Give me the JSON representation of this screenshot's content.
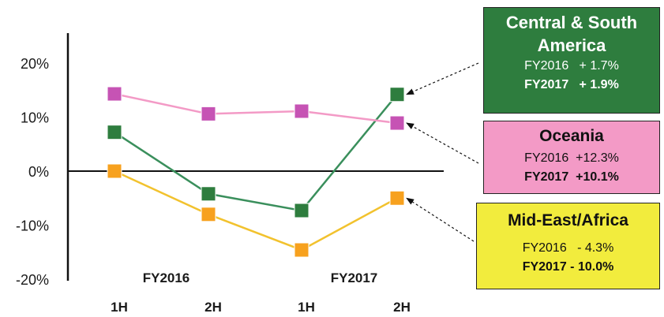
{
  "chart_data": {
    "type": "line",
    "title": "",
    "xlabel": "",
    "ylabel": "",
    "categories": [
      "1H",
      "2H",
      "1H",
      "2H"
    ],
    "groups": [
      {
        "label": "FY2016",
        "span": [
          0,
          1
        ]
      },
      {
        "label": "FY2017",
        "span": [
          2,
          3
        ]
      }
    ],
    "ylim": [
      -20,
      20
    ],
    "yticks": [
      {
        "value": 20,
        "label": "20%"
      },
      {
        "value": 10,
        "label": "10%"
      },
      {
        "value": 0,
        "label": "0%"
      },
      {
        "value": -10,
        "label": "-10%"
      },
      {
        "value": -20,
        "label": "-20%"
      }
    ],
    "grid": false,
    "legend": "callout boxes on the right",
    "series": [
      {
        "name": "Central & South America",
        "values": [
          7.2,
          -4.2,
          -7.3,
          14.2
        ],
        "line_color": "#3a8f5c",
        "marker_color": "#2e7d3e"
      },
      {
        "name": "Oceania",
        "values": [
          14.3,
          10.6,
          11.1,
          8.9
        ],
        "line_color": "#f39ac6",
        "marker_color": "#c653b4"
      },
      {
        "name": "Mid-East/Africa",
        "values": [
          0.0,
          -8.0,
          -14.6,
          -5.0
        ],
        "line_color": "#f2c22e",
        "marker_color": "#f7a11e"
      }
    ]
  },
  "callouts": {
    "csa": {
      "name": "Central & South America",
      "fy2016": "FY2016   + 1.7%",
      "fy2017": "FY2017   + 1.9%",
      "bg": "#2e7d3e"
    },
    "oceania": {
      "name": "Oceania",
      "fy2016": "FY2016  +12.3%",
      "fy2017": "FY2017  +10.1%",
      "bg": "#f39ac6"
    },
    "mea": {
      "name": "Mid-East/Africa",
      "fy2016": "FY2016   - 4.3%",
      "fy2017": "FY2017 - 10.0%",
      "bg": "#f2ec3d"
    }
  }
}
